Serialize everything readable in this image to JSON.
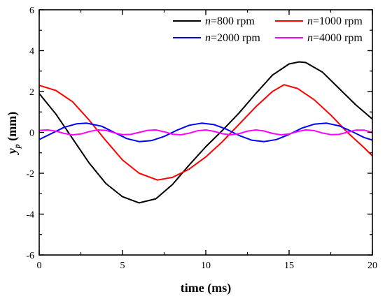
{
  "chart_data": {
    "type": "line",
    "xlabel": "time (ms)",
    "ylabel_main": "y",
    "ylabel_sub": "p",
    "ylabel_unit": " (mm)",
    "xlim": [
      0,
      20
    ],
    "ylim": [
      -6,
      6
    ],
    "x_ticks": [
      0,
      5,
      10,
      15,
      20
    ],
    "y_ticks": [
      -6,
      -4,
      -2,
      0,
      2,
      4,
      6
    ],
    "legend_position": "top",
    "series": [
      {
        "name": "n=800 rpm",
        "var": "n",
        "rest": "=800 rpm",
        "color": "#000000",
        "points": [
          [
            0,
            1.9
          ],
          [
            1,
            0.9
          ],
          [
            2,
            -0.3
          ],
          [
            3,
            -1.5
          ],
          [
            4,
            -2.5
          ],
          [
            5,
            -3.15
          ],
          [
            6,
            -3.45
          ],
          [
            7,
            -3.25
          ],
          [
            8,
            -2.55
          ],
          [
            9,
            -1.6
          ],
          [
            10,
            -0.7
          ],
          [
            11,
            0.1
          ],
          [
            12,
            0.95
          ],
          [
            13,
            1.9
          ],
          [
            14,
            2.8
          ],
          [
            15,
            3.35
          ],
          [
            15.6,
            3.45
          ],
          [
            16,
            3.42
          ],
          [
            17,
            2.95
          ],
          [
            18,
            2.15
          ],
          [
            19,
            1.35
          ],
          [
            20,
            0.65
          ]
        ]
      },
      {
        "name": "n=1000 rpm",
        "var": "n",
        "rest": "=1000 rpm",
        "color": "#ff0000",
        "points": [
          [
            0,
            2.3
          ],
          [
            1,
            2.05
          ],
          [
            2,
            1.5
          ],
          [
            3,
            0.6
          ],
          [
            4,
            -0.4
          ],
          [
            5,
            -1.35
          ],
          [
            6,
            -2.0
          ],
          [
            7.1,
            -2.33
          ],
          [
            8,
            -2.2
          ],
          [
            9,
            -1.8
          ],
          [
            10,
            -1.2
          ],
          [
            11,
            -0.45
          ],
          [
            12,
            0.4
          ],
          [
            13,
            1.25
          ],
          [
            14,
            2.0
          ],
          [
            14.7,
            2.33
          ],
          [
            15.5,
            2.15
          ],
          [
            16.5,
            1.6
          ],
          [
            17.5,
            0.85
          ],
          [
            18.5,
            0.0
          ],
          [
            19.5,
            -0.75
          ],
          [
            20,
            -1.15
          ]
        ]
      },
      {
        "name": "n=2000 rpm",
        "var": "n",
        "rest": "=2000 rpm",
        "color": "#0000ff",
        "points": [
          [
            0,
            -0.35
          ],
          [
            0.75,
            -0.05
          ],
          [
            1.5,
            0.25
          ],
          [
            2.25,
            0.42
          ],
          [
            2.85,
            0.45
          ],
          [
            3.75,
            0.3
          ],
          [
            4.5,
            0.0
          ],
          [
            5.25,
            -0.3
          ],
          [
            6.0,
            -0.45
          ],
          [
            6.75,
            -0.4
          ],
          [
            7.5,
            -0.2
          ],
          [
            8.25,
            0.1
          ],
          [
            9.0,
            0.35
          ],
          [
            9.75,
            0.45
          ],
          [
            10.5,
            0.38
          ],
          [
            11.25,
            0.15
          ],
          [
            12.0,
            -0.15
          ],
          [
            12.75,
            -0.38
          ],
          [
            13.5,
            -0.45
          ],
          [
            14.25,
            -0.35
          ],
          [
            15.0,
            -0.1
          ],
          [
            15.75,
            0.2
          ],
          [
            16.5,
            0.4
          ],
          [
            17.25,
            0.45
          ],
          [
            18.0,
            0.32
          ],
          [
            18.75,
            0.05
          ],
          [
            19.5,
            -0.25
          ],
          [
            20,
            -0.38
          ]
        ]
      },
      {
        "name": "n=4000 rpm",
        "var": "n",
        "rest": "=4000 rpm",
        "color": "#ff00ff",
        "points": [
          [
            0,
            0.1
          ],
          [
            0.5,
            0.12
          ],
          [
            1,
            0.06
          ],
          [
            1.5,
            -0.05
          ],
          [
            2,
            -0.12
          ],
          [
            2.5,
            -0.08
          ],
          [
            3,
            0.04
          ],
          [
            3.5,
            0.12
          ],
          [
            4,
            0.1
          ],
          [
            4.5,
            -0.02
          ],
          [
            5,
            -0.11
          ],
          [
            5.5,
            -0.1
          ],
          [
            6,
            0.0
          ],
          [
            6.5,
            0.1
          ],
          [
            7,
            0.12
          ],
          [
            7.5,
            0.03
          ],
          [
            8,
            -0.09
          ],
          [
            8.5,
            -0.12
          ],
          [
            9,
            -0.04
          ],
          [
            9.5,
            0.08
          ],
          [
            10,
            0.12
          ],
          [
            10.5,
            0.05
          ],
          [
            11,
            -0.07
          ],
          [
            11.5,
            -0.12
          ],
          [
            12,
            -0.06
          ],
          [
            12.5,
            0.06
          ],
          [
            13,
            0.12
          ],
          [
            13.5,
            0.07
          ],
          [
            14,
            -0.05
          ],
          [
            14.5,
            -0.12
          ],
          [
            15,
            -0.08
          ],
          [
            15.5,
            0.04
          ],
          [
            16,
            0.12
          ],
          [
            16.5,
            0.09
          ],
          [
            17,
            -0.03
          ],
          [
            17.5,
            -0.11
          ],
          [
            18,
            -0.1
          ],
          [
            18.5,
            0.01
          ],
          [
            19,
            0.11
          ],
          [
            19.5,
            0.11
          ],
          [
            20,
            0.0
          ]
        ]
      }
    ]
  }
}
